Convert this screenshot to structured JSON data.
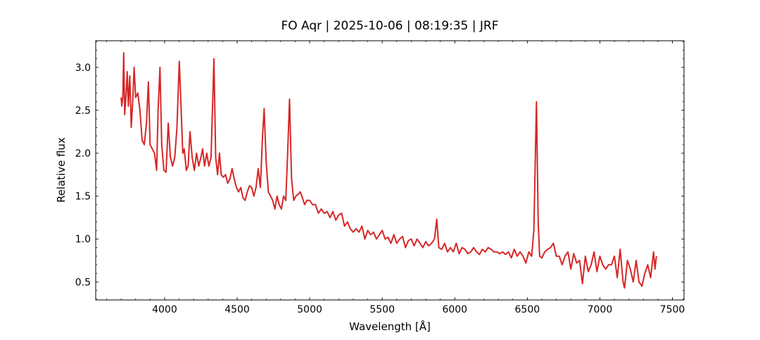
{
  "chart_data": {
    "type": "line",
    "title": "FO Aqr | 2025-10-06 | 08:19:35 | JRF",
    "xlabel": "Wavelength [Å]",
    "ylabel": "Relative flux",
    "xlim": [
      3525,
      7580
    ],
    "ylim": [
      0.29,
      3.31
    ],
    "xticks": [
      4000,
      4500,
      5000,
      5500,
      6000,
      6500,
      7000,
      7500
    ],
    "yticks": [
      0.5,
      {
        "value": 1,
        "label": "1.0"
      },
      1.5,
      {
        "value": 2,
        "label": "2.0"
      },
      2.5,
      {
        "value": 3,
        "label": "3.0"
      }
    ],
    "x": [
      3700,
      3705,
      3712,
      3718,
      3725,
      3735,
      3742,
      3750,
      3760,
      3770,
      3780,
      3790,
      3800,
      3815,
      3830,
      3845,
      3860,
      3875,
      3888,
      3900,
      3915,
      3930,
      3945,
      3955,
      3968,
      3980,
      3995,
      4010,
      4025,
      4040,
      4055,
      4070,
      4085,
      4101,
      4112,
      4125,
      4135,
      4150,
      4162,
      4175,
      4190,
      4205,
      4220,
      4235,
      4250,
      4262,
      4275,
      4290,
      4305,
      4320,
      4340,
      4352,
      4365,
      4378,
      4390,
      4405,
      4420,
      4435,
      4450,
      4465,
      4480,
      4495,
      4510,
      4525,
      4540,
      4555,
      4570,
      4585,
      4600,
      4615,
      4630,
      4645,
      4660,
      4675,
      4686,
      4700,
      4715,
      4730,
      4745,
      4760,
      4775,
      4790,
      4805,
      4820,
      4835,
      4848,
      4861,
      4875,
      4890,
      4905,
      4920,
      4935,
      4950,
      4965,
      4980,
      5000,
      5020,
      5040,
      5060,
      5080,
      5100,
      5120,
      5140,
      5160,
      5180,
      5200,
      5220,
      5240,
      5260,
      5280,
      5300,
      5320,
      5340,
      5360,
      5380,
      5400,
      5420,
      5440,
      5460,
      5480,
      5500,
      5520,
      5540,
      5560,
      5580,
      5600,
      5620,
      5640,
      5660,
      5680,
      5700,
      5720,
      5740,
      5760,
      5780,
      5800,
      5820,
      5840,
      5860,
      5876,
      5890,
      5910,
      5930,
      5950,
      5970,
      5990,
      6010,
      6030,
      6050,
      6070,
      6090,
      6110,
      6130,
      6150,
      6170,
      6190,
      6210,
      6230,
      6250,
      6270,
      6290,
      6310,
      6330,
      6350,
      6370,
      6390,
      6410,
      6430,
      6450,
      6470,
      6490,
      6510,
      6530,
      6545,
      6563,
      6575,
      6585,
      6600,
      6620,
      6640,
      6660,
      6680,
      6700,
      6720,
      6740,
      6760,
      6780,
      6800,
      6820,
      6840,
      6860,
      6880,
      6900,
      6920,
      6940,
      6960,
      6980,
      7000,
      7020,
      7040,
      7060,
      7080,
      7100,
      7120,
      7140,
      7160,
      7170,
      7190,
      7210,
      7230,
      7250,
      7270,
      7290,
      7310,
      7330,
      7350,
      7370,
      7380,
      7390
    ],
    "series": [
      {
        "name": "FO Aqr",
        "color": "#d62728",
        "values": [
          2.65,
          2.55,
          2.65,
          3.17,
          2.45,
          2.7,
          2.95,
          2.55,
          2.9,
          2.3,
          2.6,
          3.0,
          2.65,
          2.7,
          2.5,
          2.15,
          2.1,
          2.35,
          2.83,
          2.1,
          2.05,
          2.0,
          1.8,
          2.5,
          3.0,
          2.1,
          1.8,
          1.78,
          2.35,
          1.95,
          1.85,
          1.95,
          2.3,
          3.07,
          2.6,
          2.0,
          2.05,
          1.8,
          1.85,
          2.25,
          1.95,
          1.8,
          2.0,
          1.85,
          1.95,
          2.05,
          1.85,
          2.0,
          1.85,
          1.95,
          3.1,
          1.95,
          1.75,
          2.0,
          1.75,
          1.72,
          1.75,
          1.65,
          1.7,
          1.82,
          1.7,
          1.6,
          1.55,
          1.6,
          1.48,
          1.45,
          1.55,
          1.62,
          1.6,
          1.5,
          1.6,
          1.82,
          1.6,
          2.2,
          2.52,
          1.9,
          1.55,
          1.5,
          1.45,
          1.35,
          1.5,
          1.4,
          1.35,
          1.5,
          1.45,
          2.0,
          2.63,
          1.7,
          1.45,
          1.5,
          1.52,
          1.55,
          1.48,
          1.4,
          1.45,
          1.45,
          1.4,
          1.4,
          1.3,
          1.35,
          1.3,
          1.32,
          1.25,
          1.32,
          1.22,
          1.28,
          1.3,
          1.15,
          1.2,
          1.12,
          1.08,
          1.12,
          1.08,
          1.15,
          1.0,
          1.1,
          1.05,
          1.08,
          1.0,
          1.05,
          1.1,
          1.0,
          1.02,
          0.95,
          1.05,
          0.95,
          1.0,
          1.03,
          0.9,
          0.98,
          1.0,
          0.92,
          1.0,
          0.95,
          0.9,
          0.97,
          0.92,
          0.95,
          1.0,
          1.23,
          0.9,
          0.88,
          0.95,
          0.85,
          0.9,
          0.85,
          0.95,
          0.83,
          0.9,
          0.88,
          0.83,
          0.85,
          0.9,
          0.85,
          0.82,
          0.88,
          0.85,
          0.9,
          0.88,
          0.85,
          0.85,
          0.83,
          0.85,
          0.82,
          0.85,
          0.78,
          0.88,
          0.8,
          0.85,
          0.8,
          0.72,
          0.85,
          0.8,
          1.1,
          2.6,
          1.2,
          0.8,
          0.78,
          0.85,
          0.88,
          0.9,
          0.95,
          0.8,
          0.8,
          0.7,
          0.8,
          0.85,
          0.65,
          0.83,
          0.72,
          0.75,
          0.48,
          0.8,
          0.62,
          0.7,
          0.85,
          0.62,
          0.8,
          0.7,
          0.65,
          0.7,
          0.7,
          0.8,
          0.55,
          0.88,
          0.5,
          0.43,
          0.75,
          0.65,
          0.5,
          0.75,
          0.5,
          0.45,
          0.6,
          0.7,
          0.55,
          0.85,
          0.65,
          0.8
        ]
      }
    ]
  }
}
